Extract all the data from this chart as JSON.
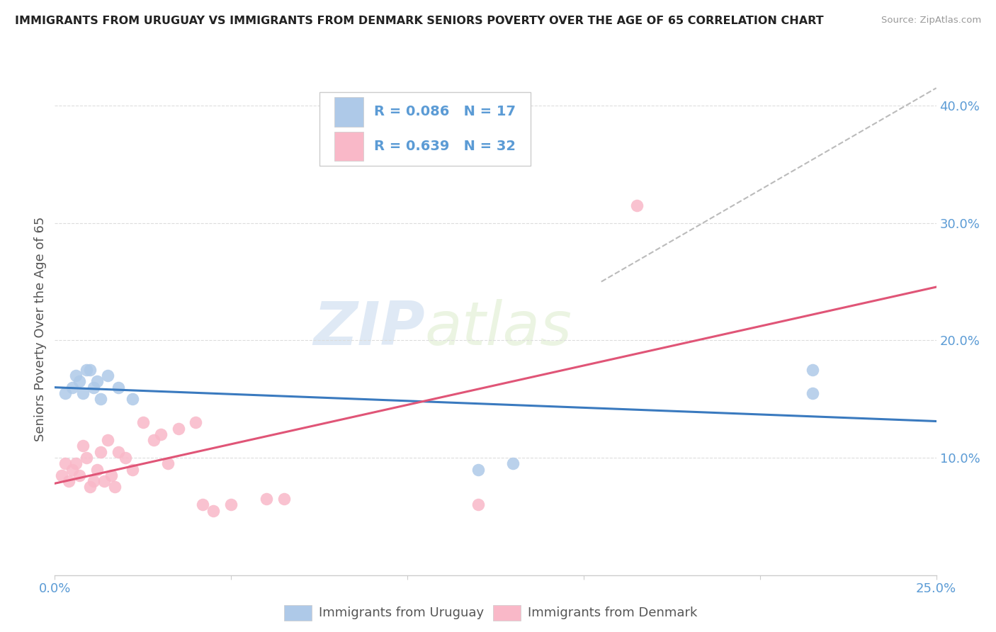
{
  "title": "IMMIGRANTS FROM URUGUAY VS IMMIGRANTS FROM DENMARK SENIORS POVERTY OVER THE AGE OF 65 CORRELATION CHART",
  "source": "Source: ZipAtlas.com",
  "ylabel": "Seniors Poverty Over the Age of 65",
  "xlim": [
    0.0,
    0.25
  ],
  "ylim": [
    0.0,
    0.42
  ],
  "uruguay_color": "#aec9e8",
  "denmark_color": "#f9b8c8",
  "uruguay_line_color": "#3a7abf",
  "denmark_line_color": "#e05577",
  "uruguay_R": 0.086,
  "uruguay_N": 17,
  "denmark_R": 0.639,
  "denmark_N": 32,
  "uruguay_x": [
    0.003,
    0.005,
    0.006,
    0.007,
    0.008,
    0.009,
    0.01,
    0.011,
    0.012,
    0.013,
    0.015,
    0.018,
    0.022,
    0.12,
    0.13,
    0.215,
    0.215
  ],
  "uruguay_y": [
    0.155,
    0.16,
    0.17,
    0.165,
    0.155,
    0.175,
    0.175,
    0.16,
    0.165,
    0.15,
    0.17,
    0.16,
    0.15,
    0.09,
    0.095,
    0.175,
    0.155
  ],
  "denmark_x": [
    0.002,
    0.003,
    0.004,
    0.005,
    0.006,
    0.007,
    0.008,
    0.009,
    0.01,
    0.011,
    0.012,
    0.013,
    0.014,
    0.015,
    0.016,
    0.017,
    0.018,
    0.02,
    0.022,
    0.025,
    0.028,
    0.03,
    0.032,
    0.035,
    0.04,
    0.042,
    0.045,
    0.05,
    0.06,
    0.065,
    0.12,
    0.165
  ],
  "denmark_y": [
    0.085,
    0.095,
    0.08,
    0.09,
    0.095,
    0.085,
    0.11,
    0.1,
    0.075,
    0.08,
    0.09,
    0.105,
    0.08,
    0.115,
    0.085,
    0.075,
    0.105,
    0.1,
    0.09,
    0.13,
    0.115,
    0.12,
    0.095,
    0.125,
    0.13,
    0.06,
    0.055,
    0.06,
    0.065,
    0.065,
    0.06,
    0.315
  ],
  "watermark_zip": "ZIP",
  "watermark_atlas": "atlas",
  "background_color": "#ffffff",
  "grid_color": "#dddddd",
  "legend_text_color": "#5b9bd5",
  "axis_text_color": "#5b9bd5"
}
